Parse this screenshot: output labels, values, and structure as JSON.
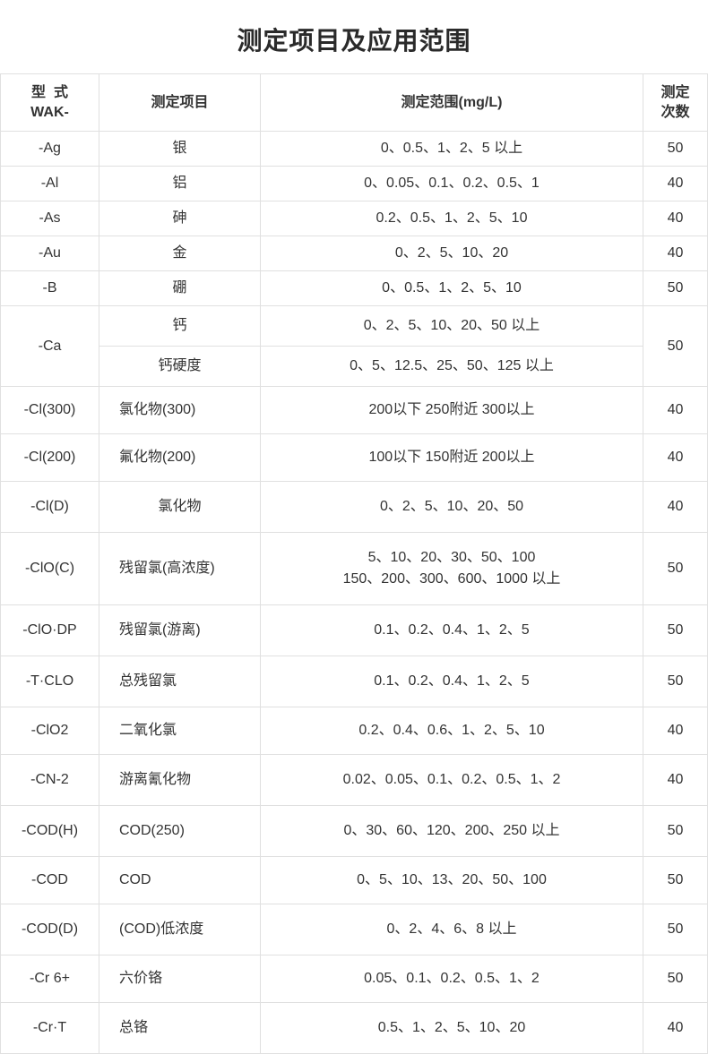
{
  "title": "测定项目及应用范围",
  "headers": {
    "model": "型  式\nWAK-",
    "item": "测定项目",
    "range": "测定范围(mg/L)",
    "count": "测定\n次数"
  },
  "rows": [
    {
      "model": "-Ag",
      "item": "银",
      "range": "0、0.5、1、2、5 以上",
      "count": "50",
      "item_center": true,
      "short": true
    },
    {
      "model": "-Al",
      "item": "铝",
      "range": "0、0.05、0.1、0.2、0.5、1",
      "count": "40",
      "item_center": true,
      "short": true
    },
    {
      "model": "-As",
      "item": "砷",
      "range": "0.2、0.5、1、2、5、10",
      "count": "40",
      "item_center": true,
      "short": true
    },
    {
      "model": "-Au",
      "item": "金",
      "range": "0、2、5、10、20",
      "count": "40",
      "item_center": true,
      "short": true
    },
    {
      "model": "-B",
      "item": "硼",
      "range": "0、0.5、1、2、5、10",
      "count": "50",
      "item_center": true,
      "short": true
    },
    {
      "model": "-Ca",
      "model_rowspan": 2,
      "item": "钙",
      "range": "0、2、5、10、20、50 以上",
      "count": "50",
      "count_rowspan": 2,
      "item_center": true
    },
    {
      "item": "钙硬度",
      "range": "0、5、12.5、25、50、125 以上",
      "item_center": true
    },
    {
      "model": "-Cl(300)",
      "item": "氯化物(300)",
      "range": "200以下 250附近 300以上",
      "count": "40",
      "tall2": true
    },
    {
      "model": "-Cl(200)",
      "item": "氟化物(200)",
      "range": "100以下 150附近 200以上",
      "count": "40",
      "tall2": true
    },
    {
      "model": "-Cl(D)",
      "item": "氯化物",
      "item_center": true,
      "range": "0、2、5、10、20、50",
      "count": "40",
      "tall": true
    },
    {
      "model": "-ClO(C)",
      "item": "残留氯(高浓度)",
      "range": "5、10、20、30、50、100\n150、200、300、600、1000 以上",
      "count": "50",
      "tall": true
    },
    {
      "model": "-ClO·DP",
      "item": "残留氯(游离)",
      "range": "0.1、0.2、0.4、1、2、5",
      "count": "50",
      "tall": true
    },
    {
      "model": "-T·CLO",
      "item": "总残留氯",
      "range": "0.1、0.2、0.4、1、2、5",
      "count": "50",
      "tall": true
    },
    {
      "model": "-ClO2",
      "item": "二氧化氯",
      "range": "0.2、0.4、0.6、1、2、5、10",
      "count": "40",
      "tall2": true
    },
    {
      "model": "-CN-2",
      "item": "游离氰化物",
      "range": "0.02、0.05、0.1、0.2、0.5、1、2",
      "count": "40",
      "tall": true
    },
    {
      "model": "-COD(H)",
      "item": "COD(250)",
      "range": "0、30、60、120、200、250 以上",
      "count": "50",
      "tall": true
    },
    {
      "model": "-COD",
      "item": "COD",
      "range": "0、5、10、13、20、50、100",
      "count": "50",
      "tall2": true
    },
    {
      "model": "-COD(D)",
      "item": "(COD)低浓度",
      "range": "0、2、4、6、8 以上",
      "count": "50",
      "tall": true
    },
    {
      "model": "-Cr 6+",
      "item": "六价铬",
      "range": "0.05、0.1、0.2、0.5、1、2",
      "count": "50",
      "tall2": true
    },
    {
      "model": "-Cr·T",
      "item": "总铬",
      "range": "0.5、1、2、5、10、20",
      "count": "40",
      "tall": true
    }
  ]
}
